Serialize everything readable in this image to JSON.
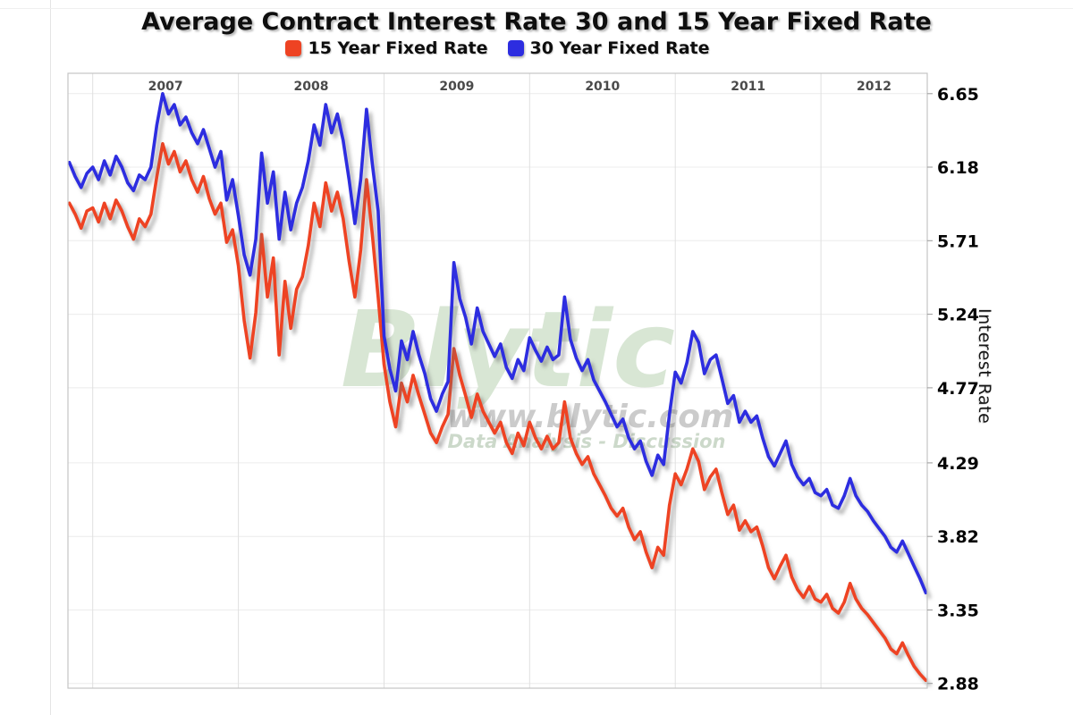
{
  "page": {
    "title": "Average Contract Interest Rate 30 and 15 Year Fixed Rate"
  },
  "watermark": {
    "brand": "Blytic",
    "url": "www.blytic.com",
    "tagline": "Data Analysis - Discussion"
  },
  "legend": [
    {
      "label": "15 Year Fixed Rate",
      "color": "#ee4323"
    },
    {
      "label": "30 Year Fixed Rate",
      "color": "#2d2de0"
    }
  ],
  "chart_data": {
    "type": "line",
    "title": "Average Contract Interest Rate 30 and 15 Year Fixed Rate",
    "xlabel": "",
    "ylabel": "Interest Rate",
    "legend_position": "top",
    "grid": true,
    "x_ticks": [
      2007,
      2008,
      2009,
      2010,
      2011,
      2012
    ],
    "y_ticks": [
      6.65,
      6.18,
      5.71,
      5.24,
      4.77,
      4.29,
      3.82,
      3.35,
      2.88
    ],
    "xlim": [
      2006.83,
      2012.73
    ],
    "ylim": [
      2.85,
      6.78
    ],
    "x": [
      2006.84,
      2006.88,
      2006.92,
      2006.96,
      2007.0,
      2007.04,
      2007.08,
      2007.12,
      2007.16,
      2007.2,
      2007.24,
      2007.28,
      2007.32,
      2007.36,
      2007.4,
      2007.44,
      2007.48,
      2007.52,
      2007.56,
      2007.6,
      2007.64,
      2007.68,
      2007.72,
      2007.76,
      2007.8,
      2007.84,
      2007.88,
      2007.92,
      2007.96,
      2008.0,
      2008.04,
      2008.08,
      2008.12,
      2008.16,
      2008.2,
      2008.24,
      2008.28,
      2008.32,
      2008.36,
      2008.4,
      2008.44,
      2008.48,
      2008.52,
      2008.56,
      2008.6,
      2008.64,
      2008.68,
      2008.72,
      2008.76,
      2008.8,
      2008.84,
      2008.88,
      2008.92,
      2008.96,
      2009.0,
      2009.04,
      2009.08,
      2009.12,
      2009.16,
      2009.2,
      2009.24,
      2009.28,
      2009.32,
      2009.36,
      2009.4,
      2009.44,
      2009.48,
      2009.52,
      2009.56,
      2009.6,
      2009.64,
      2009.68,
      2009.72,
      2009.76,
      2009.8,
      2009.84,
      2009.88,
      2009.92,
      2009.96,
      2010.0,
      2010.04,
      2010.08,
      2010.12,
      2010.16,
      2010.2,
      2010.24,
      2010.28,
      2010.32,
      2010.36,
      2010.4,
      2010.44,
      2010.48,
      2010.52,
      2010.56,
      2010.6,
      2010.64,
      2010.68,
      2010.72,
      2010.76,
      2010.8,
      2010.84,
      2010.88,
      2010.92,
      2010.96,
      2011.0,
      2011.04,
      2011.08,
      2011.12,
      2011.16,
      2011.2,
      2011.24,
      2011.28,
      2011.32,
      2011.36,
      2011.4,
      2011.44,
      2011.48,
      2011.52,
      2011.56,
      2011.6,
      2011.64,
      2011.68,
      2011.72,
      2011.76,
      2011.8,
      2011.84,
      2011.88,
      2011.92,
      2011.96,
      2012.0,
      2012.04,
      2012.08,
      2012.12,
      2012.16,
      2012.2,
      2012.24,
      2012.28,
      2012.32,
      2012.36,
      2012.4,
      2012.44,
      2012.48,
      2012.52,
      2012.56,
      2012.6,
      2012.64,
      2012.68,
      2012.72
    ],
    "series": [
      {
        "name": "15 Year Fixed Rate",
        "color": "#ee4323",
        "values": [
          5.95,
          5.88,
          5.79,
          5.9,
          5.92,
          5.83,
          5.95,
          5.85,
          5.97,
          5.9,
          5.8,
          5.72,
          5.85,
          5.8,
          5.88,
          6.12,
          6.33,
          6.2,
          6.28,
          6.15,
          6.22,
          6.1,
          6.02,
          6.12,
          5.98,
          5.88,
          5.95,
          5.7,
          5.78,
          5.55,
          5.2,
          4.96,
          5.25,
          5.75,
          5.35,
          5.6,
          4.98,
          5.45,
          5.15,
          5.4,
          5.48,
          5.68,
          5.95,
          5.8,
          6.08,
          5.9,
          6.02,
          5.85,
          5.58,
          5.35,
          5.65,
          6.1,
          5.75,
          5.35,
          4.92,
          4.68,
          4.52,
          4.8,
          4.68,
          4.85,
          4.72,
          4.6,
          4.48,
          4.42,
          4.52,
          4.6,
          5.02,
          4.85,
          4.72,
          4.58,
          4.73,
          4.62,
          4.55,
          4.48,
          4.55,
          4.42,
          4.35,
          4.48,
          4.4,
          4.55,
          4.45,
          4.38,
          4.46,
          4.38,
          4.42,
          4.68,
          4.45,
          4.35,
          4.28,
          4.33,
          4.22,
          4.15,
          4.08,
          4.0,
          3.95,
          4.0,
          3.88,
          3.8,
          3.85,
          3.72,
          3.62,
          3.75,
          3.7,
          4.02,
          4.22,
          4.15,
          4.25,
          4.38,
          4.3,
          4.12,
          4.2,
          4.25,
          4.1,
          3.96,
          4.02,
          3.86,
          3.92,
          3.85,
          3.88,
          3.76,
          3.62,
          3.55,
          3.63,
          3.7,
          3.56,
          3.48,
          3.43,
          3.5,
          3.42,
          3.4,
          3.45,
          3.36,
          3.33,
          3.4,
          3.52,
          3.42,
          3.36,
          3.32,
          3.27,
          3.22,
          3.17,
          3.1,
          3.07,
          3.14,
          3.06,
          2.99,
          2.94,
          2.9
        ]
      },
      {
        "name": "30 Year Fixed Rate",
        "color": "#2d2de0",
        "values": [
          6.21,
          6.12,
          6.05,
          6.14,
          6.18,
          6.1,
          6.22,
          6.13,
          6.25,
          6.18,
          6.08,
          6.03,
          6.13,
          6.1,
          6.18,
          6.45,
          6.65,
          6.52,
          6.58,
          6.45,
          6.5,
          6.4,
          6.33,
          6.42,
          6.3,
          6.18,
          6.28,
          5.97,
          6.1,
          5.87,
          5.62,
          5.49,
          5.72,
          6.27,
          5.95,
          6.15,
          5.72,
          6.02,
          5.78,
          5.95,
          6.05,
          6.22,
          6.45,
          6.32,
          6.58,
          6.4,
          6.52,
          6.35,
          6.1,
          5.82,
          6.1,
          6.55,
          6.2,
          5.9,
          5.1,
          4.89,
          4.75,
          5.07,
          4.95,
          5.13,
          4.98,
          4.86,
          4.7,
          4.62,
          4.73,
          4.81,
          5.57,
          5.34,
          5.22,
          5.05,
          5.28,
          5.13,
          5.05,
          4.97,
          5.05,
          4.9,
          4.83,
          4.95,
          4.88,
          5.09,
          5.01,
          4.94,
          5.03,
          4.95,
          4.98,
          5.35,
          5.08,
          4.96,
          4.88,
          4.95,
          4.82,
          4.75,
          4.68,
          4.6,
          4.52,
          4.57,
          4.45,
          4.38,
          4.43,
          4.3,
          4.21,
          4.34,
          4.28,
          4.6,
          4.87,
          4.8,
          4.93,
          5.13,
          5.06,
          4.86,
          4.95,
          4.98,
          4.83,
          4.67,
          4.72,
          4.55,
          4.62,
          4.55,
          4.59,
          4.45,
          4.33,
          4.27,
          4.35,
          4.43,
          4.28,
          4.2,
          4.15,
          4.19,
          4.1,
          4.08,
          4.12,
          4.02,
          4.0,
          4.08,
          4.19,
          4.08,
          4.02,
          3.98,
          3.92,
          3.87,
          3.82,
          3.75,
          3.72,
          3.79,
          3.71,
          3.63,
          3.55,
          3.46
        ]
      }
    ]
  }
}
